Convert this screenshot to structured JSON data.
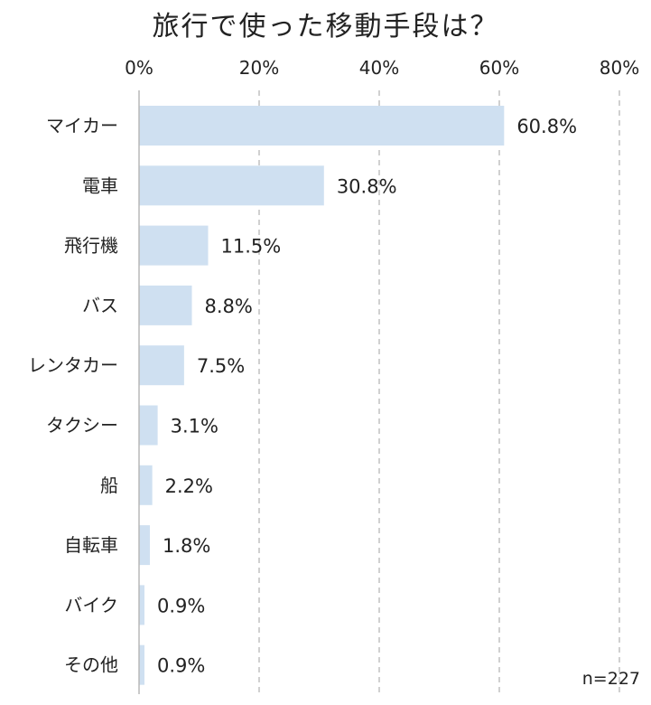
{
  "chart_data": {
    "type": "bar",
    "orientation": "horizontal",
    "title": "旅行で使った移動手段は？",
    "categories": [
      "マイカー",
      "電車",
      "飛行機",
      "バス",
      "レンタカー",
      "タクシー",
      "船",
      "自転車",
      "バイク",
      "その他"
    ],
    "values": [
      60.8,
      30.8,
      11.5,
      8.8,
      7.5,
      3.1,
      2.2,
      1.8,
      0.9,
      0.9
    ],
    "value_labels": [
      "60.8%",
      "30.8%",
      "11.5%",
      "8.8%",
      "7.5%",
      "3.1%",
      "2.2%",
      "1.8%",
      "0.9%",
      "0.9%"
    ],
    "x_ticks": [
      0,
      20,
      40,
      60,
      80
    ],
    "x_tick_labels": [
      "0%",
      "20%",
      "40%",
      "60%",
      "80%"
    ],
    "xlim": [
      0,
      80
    ],
    "x_axis_position": "top",
    "grid": true,
    "grid_style": "dashed",
    "bar_color": "#cfe0f1",
    "note": "n=227"
  }
}
